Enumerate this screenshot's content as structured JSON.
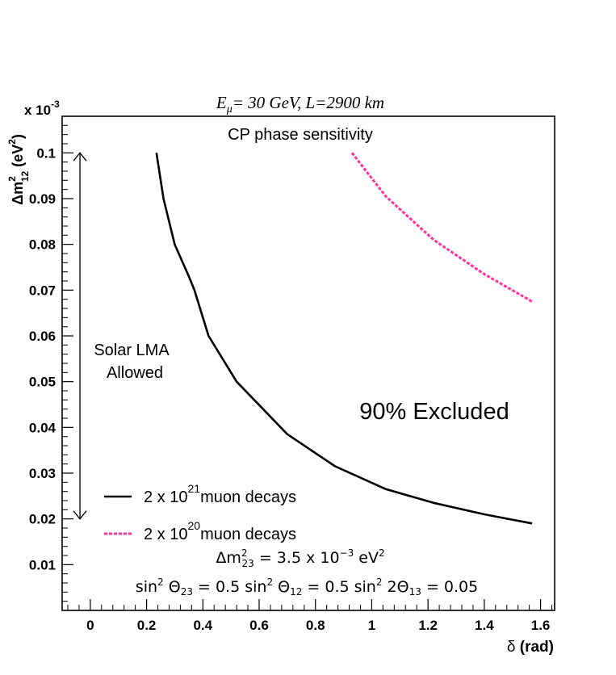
{
  "chart_data": {
    "type": "line",
    "title": "Eμ= 30 GeV, L=2900 km",
    "subtitle": "CP phase sensitivity",
    "xlabel": "δ (rad)",
    "ylabel": "Δm²₁₂ (eV²)",
    "y_multiplier": "x 10^-3",
    "xlim": [
      -0.1,
      1.65
    ],
    "ylim": [
      0.0,
      0.108
    ],
    "x_ticks": [
      "0",
      "0.2",
      "0.4",
      "0.6",
      "0.8",
      "1",
      "1.2",
      "1.4",
      "1.6"
    ],
    "y_ticks": [
      "0.01",
      "0.02",
      "0.03",
      "0.04",
      "0.05",
      "0.06",
      "0.07",
      "0.08",
      "0.09",
      "0.1"
    ],
    "series": [
      {
        "name": "2 x 10^21 muon decays",
        "style": "solid",
        "color": "#000000",
        "x": [
          0.235,
          0.26,
          0.3,
          0.35,
          0.37,
          0.42,
          0.52,
          0.7,
          0.87,
          1.05,
          1.22,
          1.4,
          1.57
        ],
        "y": [
          0.1,
          0.09,
          0.08,
          0.073,
          0.07,
          0.06,
          0.05,
          0.0385,
          0.0315,
          0.0265,
          0.0235,
          0.021,
          0.019
        ]
      },
      {
        "name": "2 x 10^20 muon decays",
        "style": "dotted",
        "color": "#ff3399",
        "x": [
          0.93,
          1.05,
          1.22,
          1.4,
          1.57
        ],
        "y": [
          0.1,
          0.0905,
          0.081,
          0.0735,
          0.0675
        ]
      }
    ],
    "annotations": {
      "allowed_label_line1": "Solar LMA",
      "allowed_label_line2": "Allowed",
      "allowed_range": [
        0.02,
        0.1
      ],
      "excluded_label": "90% Excluded",
      "param_line1": "Δm²₂₃ = 3.5 x 10⁻³ eV²",
      "param_line2": "sin² Θ₂₃ = 0.5  sin² Θ₁₂ = 0.5  sin² 2Θ₁₃ = 0.05"
    },
    "legend": [
      {
        "prefix": "2 x 10",
        "exp": "21",
        "suffix": "muon decays",
        "color": "#000000",
        "style": "solid"
      },
      {
        "prefix": "2 x 10",
        "exp": "20",
        "suffix": "muon decays",
        "color": "#ff3399",
        "style": "dotted"
      }
    ],
    "legend_position": "bottom-left"
  }
}
